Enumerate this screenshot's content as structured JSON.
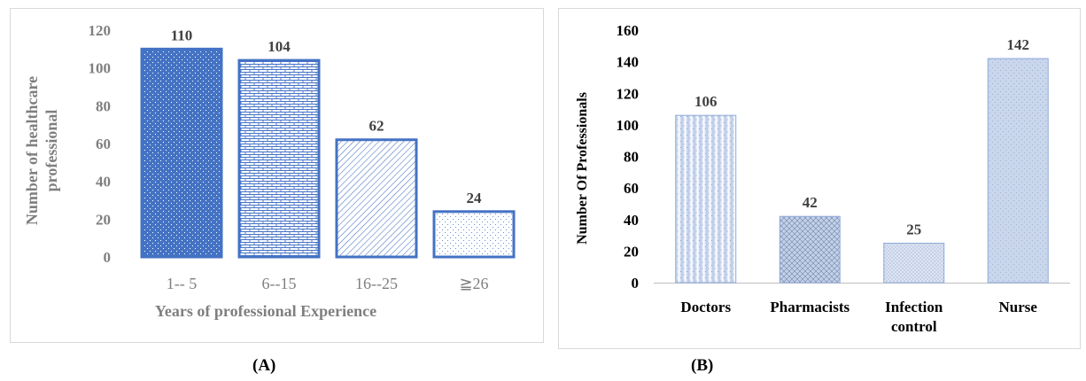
{
  "panels": {
    "a": "(A)",
    "b": "(B)"
  },
  "chart_data": [
    {
      "type": "bar",
      "categories": [
        "1-- 5",
        "6--15",
        "16--25",
        "≧26"
      ],
      "values": [
        110,
        104,
        62,
        24
      ],
      "data_labels": [
        "110",
        "104",
        "62",
        "24"
      ],
      "xlabel": "Years of professional Experience",
      "ylabel": "Number of healthcare professional",
      "ylim": [
        0,
        120
      ],
      "yticks": [
        0,
        20,
        40,
        60,
        80,
        100,
        120
      ],
      "grid": false,
      "colors": {
        "bar": "#4472c4",
        "axis_text": "#7f7f7f"
      }
    },
    {
      "type": "bar",
      "categories": [
        "Doctors",
        "Pharmacists",
        "Infection control",
        "Nurse"
      ],
      "values": [
        106,
        42,
        25,
        142
      ],
      "data_labels": [
        "106",
        "42",
        "25",
        "142"
      ],
      "xlabel": "",
      "ylabel": "Number Of Professionals",
      "ylim": [
        0,
        160
      ],
      "yticks": [
        0,
        20,
        40,
        60,
        80,
        100,
        120,
        140,
        160
      ],
      "grid": false,
      "colors": {
        "bar": "#b4c6e7",
        "bar_dark": "#8eaadb",
        "axis_text": "#000000"
      }
    }
  ]
}
